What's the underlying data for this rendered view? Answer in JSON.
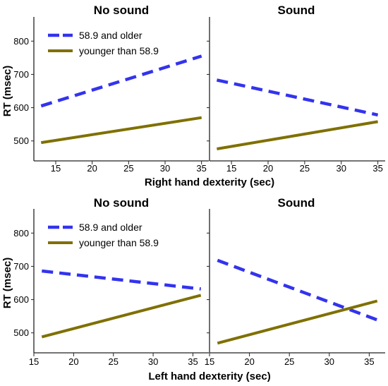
{
  "colors": {
    "older": "#3333ee",
    "younger": "#7f7000",
    "axis": "#222222"
  },
  "legend": {
    "older_label": "58.9 and older",
    "younger_label": "younger than 58.9"
  },
  "chart_data": [
    {
      "type": "line",
      "rows": [
        {
          "xlabel": "Right hand dexterity (sec)",
          "xlim": [
            12,
            36
          ],
          "xticks": [
            15,
            20,
            25,
            30,
            35
          ],
          "panels": [
            {
              "title": "No sound",
              "series": [
                {
                  "name": "58.9 and older",
                  "x": [
                    13,
                    35
                  ],
                  "y": [
                    605,
                    755
                  ],
                  "style": "dashed"
                },
                {
                  "name": "younger than 58.9",
                  "x": [
                    13,
                    35
                  ],
                  "y": [
                    495,
                    570
                  ],
                  "style": "solid"
                }
              ]
            },
            {
              "title": "Sound",
              "series": [
                {
                  "name": "58.9 and older",
                  "x": [
                    13,
                    35
                  ],
                  "y": [
                    683,
                    578
                  ],
                  "style": "dashed"
                },
                {
                  "name": "younger than 58.9",
                  "x": [
                    13,
                    35
                  ],
                  "y": [
                    476,
                    558
                  ],
                  "style": "solid"
                }
              ]
            }
          ]
        },
        {
          "xlabel": "Left hand dexterity (sec)",
          "xlim": [
            15,
            37
          ],
          "xticks": [
            15,
            20,
            25,
            30,
            35
          ],
          "panels": [
            {
              "title": "No sound",
              "series": [
                {
                  "name": "58.9 and older",
                  "x": [
                    16,
                    36
                  ],
                  "y": [
                    686,
                    632
                  ],
                  "style": "dashed"
                },
                {
                  "name": "younger than 58.9",
                  "x": [
                    16,
                    36
                  ],
                  "y": [
                    488,
                    613
                  ],
                  "style": "solid"
                }
              ]
            },
            {
              "title": "Sound",
              "series": [
                {
                  "name": "58.9 and older",
                  "x": [
                    16,
                    36
                  ],
                  "y": [
                    718,
                    539
                  ],
                  "style": "dashed"
                },
                {
                  "name": "younger than 58.9",
                  "x": [
                    16,
                    36
                  ],
                  "y": [
                    469,
                    596
                  ],
                  "style": "solid"
                }
              ]
            }
          ]
        }
      ],
      "ylabel": "RT (msec)",
      "ylim": [
        440,
        860
      ],
      "yticks": [
        500,
        600,
        700,
        800
      ],
      "legend_position": "top-left of left panels"
    }
  ]
}
